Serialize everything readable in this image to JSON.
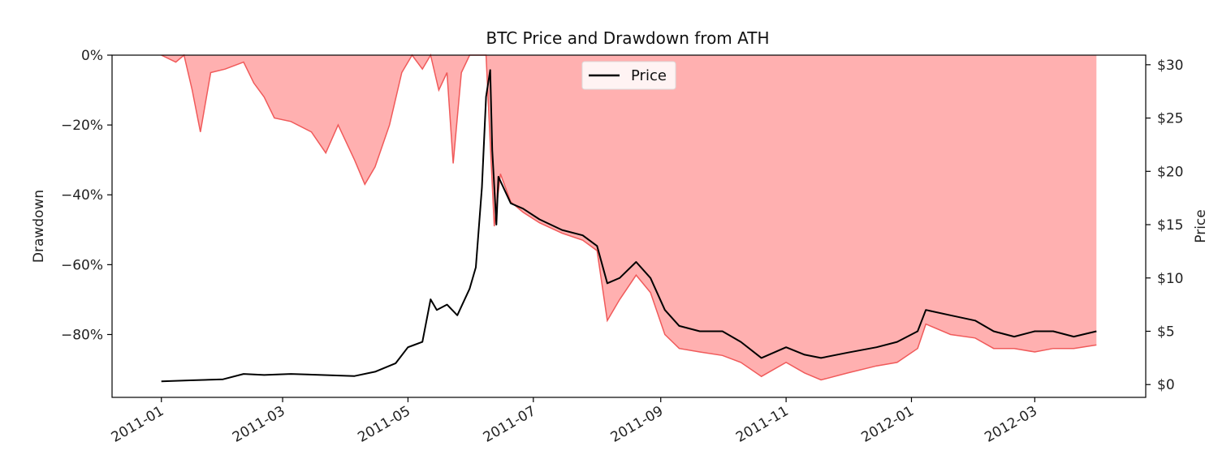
{
  "chart_data": {
    "type": "area",
    "title": "BTC Price and Drawdown from ATH",
    "x_ticks": [
      "2011-01",
      "2011-03",
      "2011-05",
      "2011-07",
      "2011-09",
      "2011-11",
      "2012-01",
      "2012-03"
    ],
    "x_tick_dates": [
      "2011-01-01",
      "2011-03-01",
      "2011-05-01",
      "2011-07-01",
      "2011-09-01",
      "2011-11-01",
      "2012-01-01",
      "2012-03-01"
    ],
    "x_range": [
      "2010-12-08",
      "2012-04-24"
    ],
    "y_left": {
      "label": "Drawdown",
      "range": [
        -0.98,
        0.0
      ],
      "ticks": [
        0,
        -0.2,
        -0.4,
        -0.6,
        -0.8
      ],
      "tick_labels": [
        "0%",
        "−20%",
        "−40%",
        "−60%",
        "−80%"
      ]
    },
    "y_right": {
      "label": "Price",
      "range": [
        -1.2,
        30.9
      ],
      "ticks": [
        0,
        5,
        10,
        15,
        20,
        25,
        30
      ],
      "tick_labels": [
        "$0",
        "$5",
        "$10",
        "$15",
        "$20",
        "$25",
        "$30"
      ]
    },
    "legend": {
      "position": "top-center",
      "entries": [
        "Price"
      ]
    },
    "colors": {
      "price": "#000000",
      "drawdown_fill": "#ff9c9c",
      "drawdown_line": "#f05a5a"
    },
    "series": [
      {
        "name": "Price",
        "axis": "right",
        "x": [
          "2011-01-01",
          "2011-01-15",
          "2011-01-31",
          "2011-02-10",
          "2011-02-20",
          "2011-03-05",
          "2011-03-20",
          "2011-04-05",
          "2011-04-15",
          "2011-04-25",
          "2011-05-01",
          "2011-05-08",
          "2011-05-12",
          "2011-05-15",
          "2011-05-20",
          "2011-05-25",
          "2011-05-31",
          "2011-06-03",
          "2011-06-05",
          "2011-06-06",
          "2011-06-08",
          "2011-06-10",
          "2011-06-11",
          "2011-06-13",
          "2011-06-14",
          "2011-06-20",
          "2011-06-26",
          "2011-07-04",
          "2011-07-15",
          "2011-07-25",
          "2011-08-01",
          "2011-08-06",
          "2011-08-12",
          "2011-08-20",
          "2011-08-27",
          "2011-09-03",
          "2011-09-10",
          "2011-09-20",
          "2011-10-01",
          "2011-10-10",
          "2011-10-20",
          "2011-11-01",
          "2011-11-10",
          "2011-11-18",
          "2011-12-01",
          "2011-12-15",
          "2011-12-25",
          "2012-01-04",
          "2012-01-08",
          "2012-01-20",
          "2012-02-01",
          "2012-02-10",
          "2012-02-20",
          "2012-03-01",
          "2012-03-10",
          "2012-03-20",
          "2012-03-31"
        ],
        "values": [
          0.3,
          0.4,
          0.5,
          1.0,
          0.9,
          1.0,
          0.9,
          0.8,
          1.2,
          2.0,
          3.5,
          4.0,
          8.0,
          7.0,
          7.5,
          6.5,
          9.0,
          11.0,
          16.0,
          18.5,
          27.0,
          29.5,
          22.0,
          15.0,
          19.5,
          17.0,
          16.5,
          15.5,
          14.5,
          14.0,
          13.0,
          9.5,
          10.0,
          11.5,
          10.0,
          7.0,
          5.5,
          5.0,
          5.0,
          4.0,
          2.5,
          3.5,
          2.8,
          2.5,
          3.0,
          3.5,
          4.0,
          5.0,
          7.0,
          6.5,
          6.0,
          5.0,
          4.5,
          5.0,
          5.0,
          4.5,
          5.0
        ]
      },
      {
        "name": "Drawdown",
        "axis": "left",
        "x": [
          "2011-01-01",
          "2011-01-08",
          "2011-01-12",
          "2011-01-16",
          "2011-01-20",
          "2011-01-25",
          "2011-02-01",
          "2011-02-10",
          "2011-02-15",
          "2011-02-20",
          "2011-02-25",
          "2011-03-05",
          "2011-03-15",
          "2011-03-22",
          "2011-03-28",
          "2011-04-05",
          "2011-04-10",
          "2011-04-15",
          "2011-04-22",
          "2011-04-28",
          "2011-05-03",
          "2011-05-08",
          "2011-05-12",
          "2011-05-16",
          "2011-05-20",
          "2011-05-23",
          "2011-05-27",
          "2011-05-31",
          "2011-06-04",
          "2011-06-08",
          "2011-06-10",
          "2011-06-12",
          "2011-06-15",
          "2011-06-20",
          "2011-06-26",
          "2011-07-04",
          "2011-07-15",
          "2011-07-25",
          "2011-08-01",
          "2011-08-06",
          "2011-08-12",
          "2011-08-20",
          "2011-08-27",
          "2011-09-03",
          "2011-09-10",
          "2011-09-20",
          "2011-10-01",
          "2011-10-10",
          "2011-10-20",
          "2011-11-01",
          "2011-11-10",
          "2011-11-18",
          "2011-12-01",
          "2011-12-15",
          "2011-12-25",
          "2012-01-04",
          "2012-01-08",
          "2012-01-20",
          "2012-02-01",
          "2012-02-10",
          "2012-02-20",
          "2012-03-01",
          "2012-03-10",
          "2012-03-20",
          "2012-03-31"
        ],
        "values": [
          0,
          -0.02,
          0,
          -0.1,
          -0.22,
          -0.05,
          -0.04,
          -0.02,
          -0.08,
          -0.12,
          -0.18,
          -0.19,
          -0.22,
          -0.28,
          -0.2,
          -0.3,
          -0.37,
          -0.32,
          -0.2,
          -0.05,
          0,
          -0.04,
          0,
          -0.1,
          -0.05,
          -0.31,
          -0.05,
          0,
          0,
          0,
          -0.25,
          -0.49,
          -0.34,
          -0.42,
          -0.45,
          -0.48,
          -0.51,
          -0.53,
          -0.56,
          -0.76,
          -0.7,
          -0.63,
          -0.68,
          -0.8,
          -0.84,
          -0.85,
          -0.86,
          -0.88,
          -0.92,
          -0.88,
          -0.91,
          -0.93,
          -0.91,
          -0.89,
          -0.88,
          -0.84,
          -0.77,
          -0.8,
          -0.81,
          -0.84,
          -0.84,
          -0.85,
          -0.84,
          -0.84,
          -0.83
        ]
      }
    ]
  }
}
